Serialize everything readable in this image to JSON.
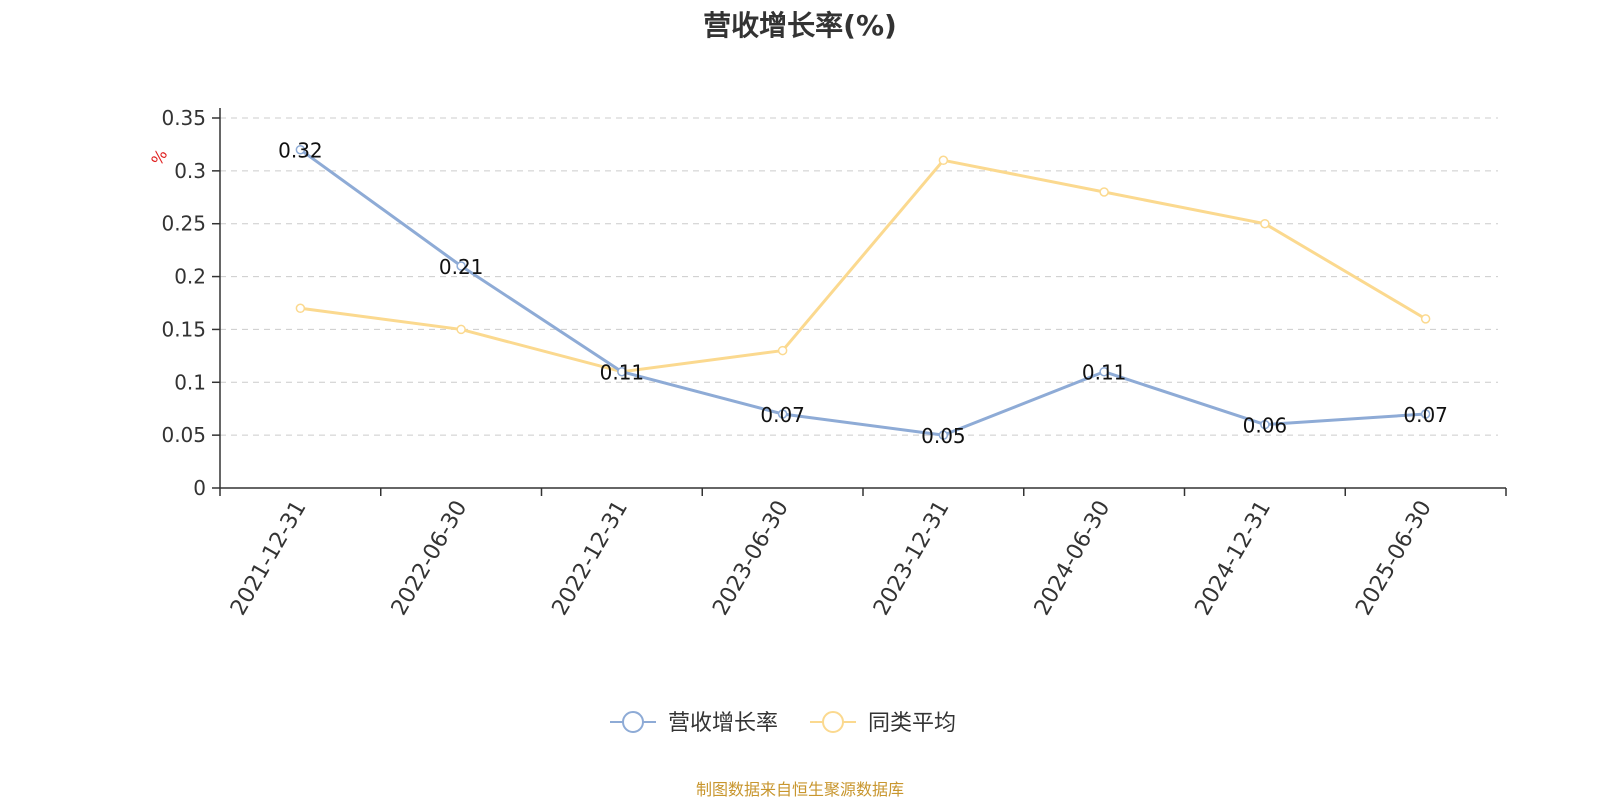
{
  "chart_data": {
    "type": "line",
    "title": "营收增长率(%)",
    "ylabel": "%",
    "xlabel": "",
    "categories": [
      "2021-12-31",
      "2022-06-30",
      "2022-12-31",
      "2023-06-30",
      "2023-12-31",
      "2024-06-30",
      "2024-12-31",
      "2025-06-30"
    ],
    "ylim": [
      0,
      0.35
    ],
    "yticks": [
      "0",
      "0.05",
      "0.1",
      "0.15",
      "0.2",
      "0.25",
      "0.3",
      "0.35"
    ],
    "grid": true,
    "legend_position": "bottom-center",
    "series": [
      {
        "name": "营收增长率",
        "color": "#8eabd6",
        "values": [
          0.32,
          0.21,
          0.11,
          0.07,
          0.05,
          0.11,
          0.06,
          0.07
        ],
        "labels": [
          "0.32",
          "0.21",
          "0.11",
          "0.07",
          "0.05",
          "0.11",
          "0.06",
          "0.07"
        ]
      },
      {
        "name": "同类平均",
        "color": "#fbd98f",
        "values": [
          0.17,
          0.15,
          0.11,
          0.13,
          0.31,
          0.28,
          0.25,
          0.16
        ]
      }
    ]
  },
  "source_note": "制图数据来自恒生聚源数据库"
}
